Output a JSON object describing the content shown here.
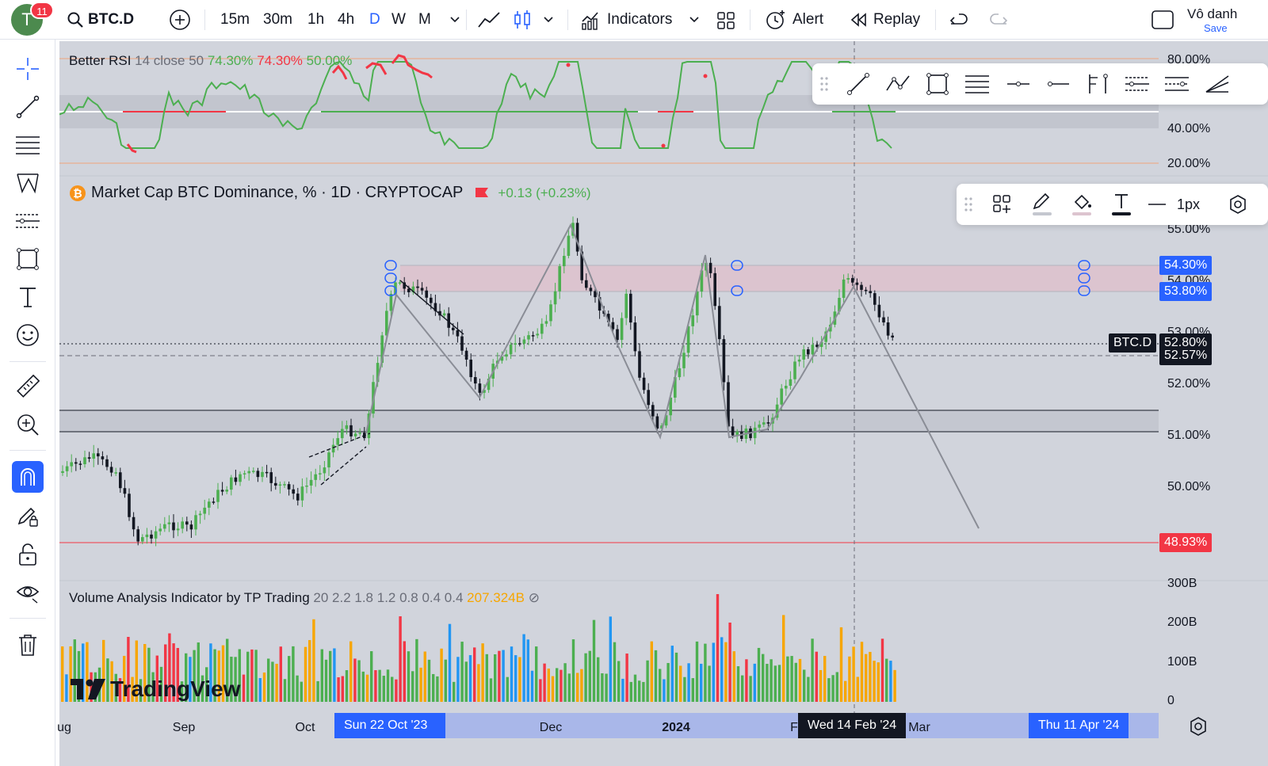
{
  "topbar": {
    "notification_count": "11",
    "avatar_letter": "T",
    "symbol": "BTC.D",
    "timeframes": [
      "15m",
      "30m",
      "1h",
      "4h",
      "D",
      "W",
      "M"
    ],
    "active_timeframe": "D",
    "indicators_label": "Indicators",
    "alert_label": "Alert",
    "replay_label": "Replay",
    "layout_name": "Vô danh",
    "save_label": "Save"
  },
  "rsi_panel": {
    "name": "Better RSI",
    "params": "14 close 50",
    "value_green": "74.30%",
    "value_red": "74.30%",
    "value_level": "50.00%",
    "axis": [
      "80.00%",
      "40.00%",
      "20.00%"
    ]
  },
  "main_panel": {
    "title": "Market Cap BTC Dominance, % · 1D · CRYPTOCAP",
    "change": "+0.13 (+0.23%)",
    "axis": [
      "55.00%",
      "54.00%",
      "53.00%",
      "52.00%",
      "51.00%",
      "50.00%"
    ],
    "tag_top": "54.30%",
    "tag_bottom": "53.80%",
    "symbol_tag": "BTC.D",
    "price_upper": "52.80%",
    "price_current": "52.57%",
    "tag_red": "48.93%",
    "line_width_label": "1px"
  },
  "volume_panel": {
    "name": "Volume Analysis Indicator by TP Trading",
    "params": "20 2.2 1.8 1.2 0.8 0.4 0.4",
    "value": "207.324B",
    "axis": [
      "300B",
      "200B",
      "100B",
      "0"
    ]
  },
  "time_axis": {
    "labels": [
      "ug",
      "Sep",
      "Oct",
      "Dec",
      "2024",
      "F",
      "Mar"
    ],
    "pill_left": "Sun 22 Oct '23",
    "pill_center": "Wed 14 Feb '24",
    "pill_right": "Thu 11 Apr '24"
  },
  "watermark": "TradingView",
  "colors": {
    "accent": "#2962ff",
    "up": "#4caf50",
    "down": "#131722",
    "red": "#f23645",
    "orange": "#f7a600",
    "zone": "#dcc4cf"
  }
}
